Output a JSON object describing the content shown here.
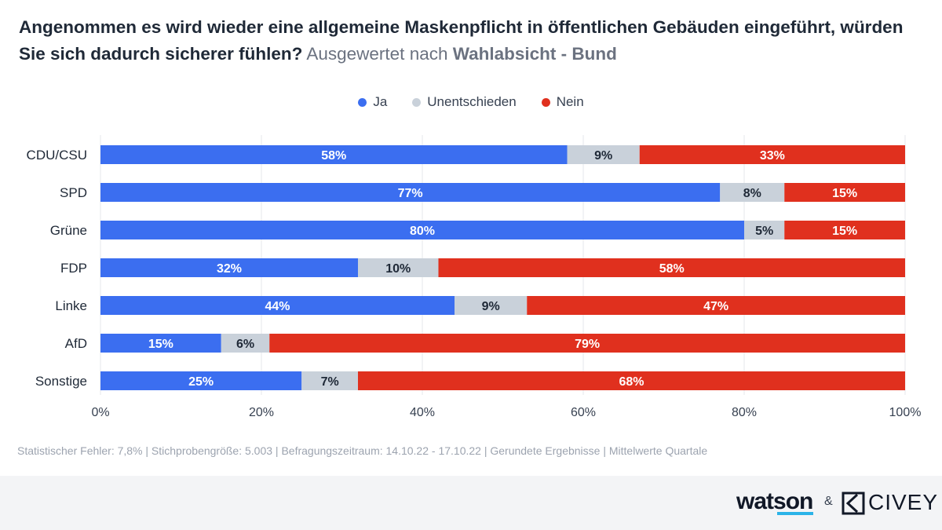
{
  "title": {
    "main": "Angenommen es wird wieder eine allgemeine Maskenpflicht in öffentlichen Gebäuden eingeführt, würden Sie sich dadurch sicherer fühlen?",
    "sub": " Ausgewertet nach ",
    "sub_bold": "Wahlabsicht - Bund"
  },
  "legend": [
    {
      "label": "Ja",
      "color": "#3b6ef0"
    },
    {
      "label": "Unentschieden",
      "color": "#c9d1da"
    },
    {
      "label": "Nein",
      "color": "#e0301e"
    }
  ],
  "chart_data": {
    "type": "bar",
    "orientation": "horizontal",
    "stacked": true,
    "categories": [
      "CDU/CSU",
      "SPD",
      "Grüne",
      "FDP",
      "Linke",
      "AfD",
      "Sonstige"
    ],
    "series": [
      {
        "name": "Ja",
        "color": "#3b6ef0",
        "label_color": "#ffffff",
        "values": [
          58,
          77,
          80,
          32,
          44,
          15,
          25
        ]
      },
      {
        "name": "Unentschieden",
        "color": "#c9d1da",
        "label_color": "#1f2937",
        "values": [
          9,
          8,
          5,
          10,
          9,
          6,
          7
        ]
      },
      {
        "name": "Nein",
        "color": "#e0301e",
        "label_color": "#ffffff",
        "values": [
          33,
          15,
          15,
          58,
          47,
          79,
          68
        ]
      }
    ],
    "xlim": [
      0,
      100
    ],
    "xticks": [
      0,
      20,
      40,
      60,
      80,
      100
    ],
    "xtick_labels": [
      "0%",
      "20%",
      "40%",
      "60%",
      "80%",
      "100%"
    ],
    "value_suffix": "%",
    "grid": true,
    "legend_position": "top-center"
  },
  "footnote": "Statistischer Fehler: 7,8% | Stichprobengröße: 5.003 | Befragungszeitraum: 14.10.22 - 17.10.22 | Gerundete Ergebnisse | Mittelwerte Quartale",
  "brand": {
    "watson": "watson",
    "amp": "&",
    "civey": "CIVEY"
  }
}
